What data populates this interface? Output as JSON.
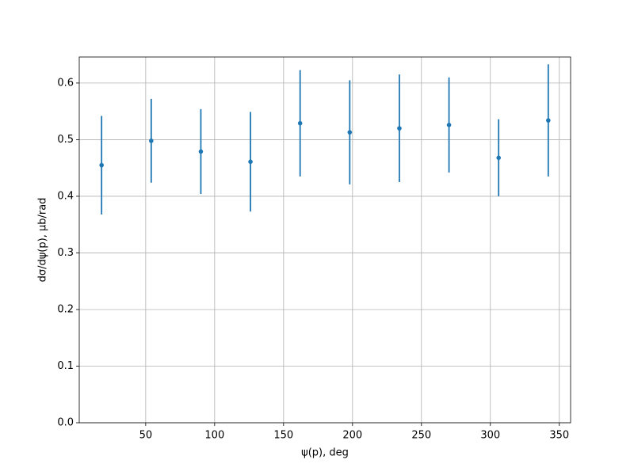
{
  "chart_data": {
    "type": "errorbar",
    "xlabel": "ψ(p), deg",
    "ylabel": "dσ/dψ(p), μb/rad",
    "x": [
      18,
      54,
      90,
      126,
      162,
      198,
      234,
      270,
      306,
      342
    ],
    "values": [
      0.455,
      0.498,
      0.479,
      0.461,
      0.529,
      0.513,
      0.52,
      0.526,
      0.468,
      0.534
    ],
    "errors": [
      0.087,
      0.074,
      0.075,
      0.088,
      0.094,
      0.092,
      0.095,
      0.084,
      0.068,
      0.099
    ],
    "color": "#1f77b4",
    "xlim": [
      1.8,
      358.2
    ],
    "ylim": [
      0,
      0.646
    ],
    "xticks": [
      50,
      100,
      150,
      200,
      250,
      300,
      350
    ],
    "yticks": [
      {
        "value": 0,
        "label": "0.0"
      },
      0.1,
      0.2,
      0.3,
      0.4,
      0.5,
      0.6
    ],
    "grid": true
  }
}
